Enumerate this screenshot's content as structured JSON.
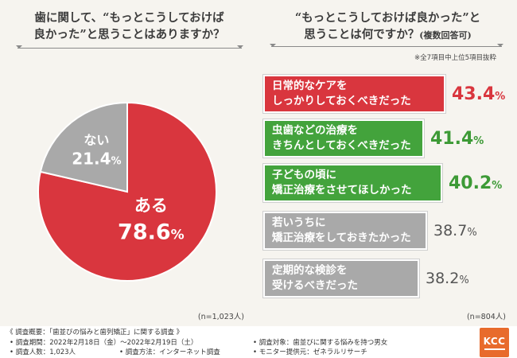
{
  "colors": {
    "red": "#d9363e",
    "green": "#43a33c",
    "gray": "#a9a9a9",
    "pct_red": "#d9363e",
    "pct_green": "#3d9a36",
    "pct_gray": "#555555"
  },
  "left": {
    "title_line1": "歯に関して、“もっとこうしておけば",
    "title_line2": "良かった”と思うことはありますか？",
    "n_label": "(n=1,023人)"
  },
  "right": {
    "title_line1": "“もっとこうしておけば良かった”と",
    "title_line2": "思うことは何ですか？",
    "title_suffix": "(複数回答可)",
    "note": "※全7項目中上位5項目抜粋",
    "n_label": "(n=804人)"
  },
  "chart_data": [
    {
      "type": "pie",
      "slices": [
        {
          "label": "ある",
          "value": 78.6,
          "display_value": "78.6",
          "unit": "%"
        },
        {
          "label": "ない",
          "value": 21.4,
          "display_value": "21.4",
          "unit": "%"
        }
      ]
    },
    {
      "type": "bar",
      "orientation": "horizontal",
      "bars": [
        {
          "label": "日常的なケアを\nしっかりしておくべきだった",
          "value": 43.4,
          "display_value": "43.4",
          "unit": "%",
          "color": "red"
        },
        {
          "label": "虫歯などの治療を\nきちんとしておくべきだった",
          "value": 41.4,
          "display_value": "41.4",
          "unit": "%",
          "color": "green"
        },
        {
          "label": "子どもの頃に\n矯正治療をさせてほしかった",
          "value": 40.2,
          "display_value": "40.2",
          "unit": "%",
          "color": "green"
        },
        {
          "label": "若いうちに\n矯正治療をしておきたかった",
          "value": 38.7,
          "display_value": "38.7",
          "unit": "%",
          "color": "gray"
        },
        {
          "label": "定期的な検診を\n受けるべきだった",
          "value": 38.2,
          "display_value": "38.2",
          "unit": "%",
          "color": "gray"
        }
      ]
    }
  ],
  "footer": {
    "heading": "《 調査概要：「歯並びの悩みと歯列矯正」に関する調査 》",
    "period": "• 調査期間：2022年2月18日（金）〜2022年2月19日（土）",
    "count": "• 調査人数：1,023人",
    "method": "• 調査方法：インターネット調査",
    "target": "• 調査対象：歯並びに関する悩みを持つ男女",
    "provider": "• モニター提供元：ゼネラルリサーチ",
    "logo": "KCC"
  }
}
